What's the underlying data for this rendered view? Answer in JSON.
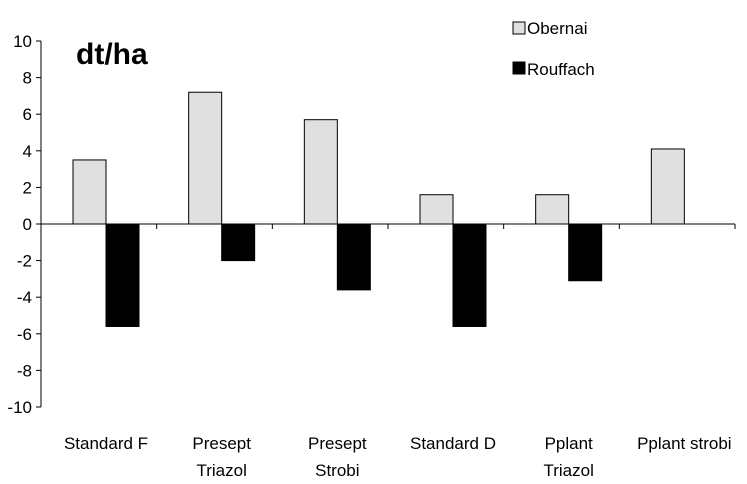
{
  "chart_data": {
    "type": "bar",
    "title": "",
    "unit_label": "dt/ha",
    "xlabel": "",
    "ylabel": "",
    "ylim": [
      -10,
      10
    ],
    "yticks": [
      "10",
      "8",
      "6",
      "4",
      "2",
      "0",
      "-2",
      "-4",
      "-6",
      "-8",
      "-10"
    ],
    "grid": false,
    "legend_position": "top-right",
    "categories": [
      [
        "Standard F"
      ],
      [
        "Presept",
        "Triazol"
      ],
      [
        "Presept",
        "Strobi"
      ],
      [
        "Standard D"
      ],
      [
        "Pplant",
        "Triazol"
      ],
      [
        "Pplant strobi"
      ]
    ],
    "series": [
      {
        "name": "Obernai",
        "color": "#e0e0e0",
        "values": [
          3.5,
          7.2,
          5.7,
          1.6,
          1.6,
          4.1
        ]
      },
      {
        "name": "Rouffach",
        "color": "#000000",
        "values": [
          -5.6,
          -2.0,
          -3.6,
          -5.6,
          -3.1,
          null
        ]
      }
    ]
  }
}
